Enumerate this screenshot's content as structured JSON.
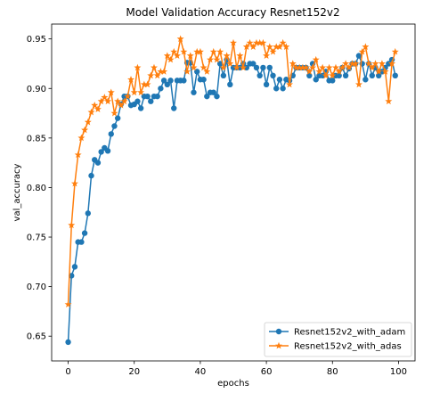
{
  "chart_data": {
    "type": "line",
    "title": "Model Validation Accuracy Resnet152v2",
    "xlabel": "epochs",
    "ylabel": "val_accuracy",
    "xlim": [
      -5,
      105
    ],
    "ylim": [
      0.625,
      0.965
    ],
    "xticks": [
      "0",
      "20",
      "40",
      "60",
      "80",
      "100"
    ],
    "yticks": [
      "0.65",
      "0.70",
      "0.75",
      "0.80",
      "0.85",
      "0.90",
      "0.95"
    ],
    "grid": false,
    "legend_position": "lower right",
    "series": [
      {
        "name": "Resnet152v2_with_adam",
        "color": "#1f77b4",
        "marker": "circle",
        "x": [
          0,
          1,
          2,
          3,
          4,
          5,
          6,
          7,
          8,
          9,
          10,
          11,
          12,
          13,
          14,
          15,
          16,
          17,
          18,
          19,
          20,
          21,
          22,
          23,
          24,
          25,
          26,
          27,
          28,
          29,
          30,
          31,
          32,
          33,
          34,
          35,
          36,
          37,
          38,
          39,
          40,
          41,
          42,
          43,
          44,
          45,
          46,
          47,
          48,
          49,
          50,
          51,
          52,
          53,
          54,
          55,
          56,
          57,
          58,
          59,
          60,
          61,
          62,
          63,
          64,
          65,
          66,
          67,
          68,
          69,
          70,
          71,
          72,
          73,
          74,
          75,
          76,
          77,
          78,
          79,
          80,
          81,
          82,
          83,
          84,
          85,
          86,
          87,
          88,
          89,
          90,
          91,
          92,
          93,
          94,
          95,
          96,
          97,
          98,
          99
        ],
        "y": [
          0.644,
          0.711,
          0.72,
          0.745,
          0.745,
          0.754,
          0.774,
          0.812,
          0.828,
          0.825,
          0.836,
          0.84,
          0.837,
          0.854,
          0.862,
          0.87,
          0.884,
          0.892,
          0.892,
          0.883,
          0.884,
          0.887,
          0.88,
          0.892,
          0.892,
          0.887,
          0.892,
          0.892,
          0.9,
          0.908,
          0.904,
          0.908,
          0.88,
          0.908,
          0.908,
          0.908,
          0.926,
          0.926,
          0.896,
          0.917,
          0.909,
          0.909,
          0.892,
          0.896,
          0.896,
          0.892,
          0.925,
          0.913,
          0.929,
          0.904,
          0.921,
          0.921,
          0.921,
          0.925,
          0.921,
          0.925,
          0.925,
          0.921,
          0.913,
          0.921,
          0.904,
          0.921,
          0.913,
          0.9,
          0.909,
          0.9,
          0.909,
          0.908,
          0.913,
          0.921,
          0.921,
          0.921,
          0.921,
          0.913,
          0.925,
          0.909,
          0.913,
          0.913,
          0.917,
          0.908,
          0.908,
          0.913,
          0.913,
          0.921,
          0.913,
          0.92,
          0.925,
          0.925,
          0.933,
          0.925,
          0.909,
          0.925,
          0.913,
          0.921,
          0.913,
          0.917,
          0.921,
          0.925,
          0.929,
          0.913
        ]
      },
      {
        "name": "Resnet152v2_with_adas",
        "color": "#ff7f0e",
        "marker": "star",
        "x": [
          0,
          1,
          2,
          3,
          4,
          5,
          6,
          7,
          8,
          9,
          10,
          11,
          12,
          13,
          14,
          15,
          16,
          17,
          18,
          19,
          20,
          21,
          22,
          23,
          24,
          25,
          26,
          27,
          28,
          29,
          30,
          31,
          32,
          33,
          34,
          35,
          36,
          37,
          38,
          39,
          40,
          41,
          42,
          43,
          44,
          45,
          46,
          47,
          48,
          49,
          50,
          51,
          52,
          53,
          54,
          55,
          56,
          57,
          58,
          59,
          60,
          61,
          62,
          63,
          64,
          65,
          66,
          67,
          68,
          69,
          70,
          71,
          72,
          73,
          74,
          75,
          76,
          77,
          78,
          79,
          80,
          81,
          82,
          83,
          84,
          85,
          86,
          87,
          88,
          89,
          90,
          91,
          92,
          93,
          94,
          95,
          96,
          97,
          98,
          99
        ],
        "y": [
          0.682,
          0.762,
          0.804,
          0.833,
          0.85,
          0.858,
          0.866,
          0.876,
          0.883,
          0.879,
          0.887,
          0.891,
          0.887,
          0.896,
          0.875,
          0.887,
          0.883,
          0.887,
          0.892,
          0.909,
          0.896,
          0.921,
          0.896,
          0.904,
          0.904,
          0.913,
          0.921,
          0.913,
          0.917,
          0.917,
          0.933,
          0.929,
          0.937,
          0.933,
          0.95,
          0.937,
          0.917,
          0.933,
          0.921,
          0.937,
          0.937,
          0.921,
          0.917,
          0.929,
          0.937,
          0.929,
          0.937,
          0.921,
          0.933,
          0.925,
          0.946,
          0.921,
          0.933,
          0.921,
          0.942,
          0.946,
          0.942,
          0.946,
          0.946,
          0.946,
          0.933,
          0.942,
          0.937,
          0.942,
          0.942,
          0.946,
          0.942,
          0.904,
          0.925,
          0.921,
          0.921,
          0.921,
          0.921,
          0.917,
          0.921,
          0.929,
          0.917,
          0.921,
          0.913,
          0.921,
          0.913,
          0.921,
          0.917,
          0.921,
          0.925,
          0.921,
          0.925,
          0.925,
          0.904,
          0.937,
          0.942,
          0.925,
          0.921,
          0.925,
          0.917,
          0.925,
          0.917,
          0.887,
          0.925,
          0.937
        ]
      }
    ]
  }
}
